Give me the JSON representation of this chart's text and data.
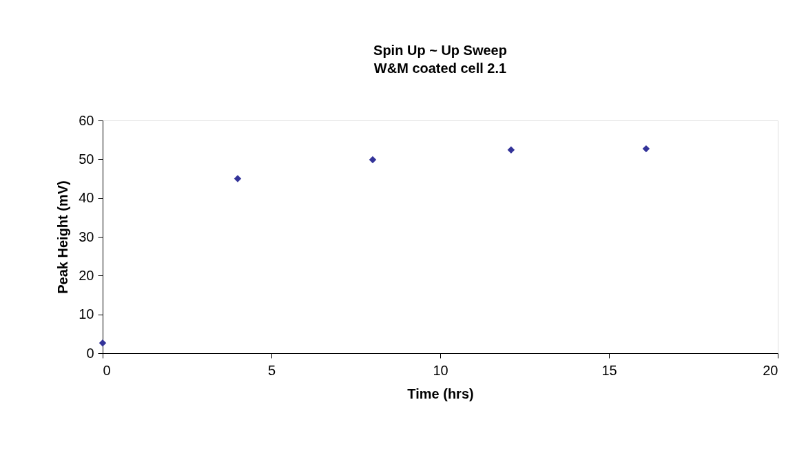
{
  "chart_data": {
    "type": "scatter",
    "title": [
      "Spin Up ~ Up Sweep",
      "W&M coated cell 2.1"
    ],
    "xlabel": "Time (hrs)",
    "ylabel": "Peak Height (mV)",
    "x": [
      0,
      4.0,
      8.0,
      12.1,
      16.1
    ],
    "series": [
      {
        "color": "#333399",
        "values": [
          2.6,
          45.0,
          49.9,
          52.4,
          52.7
        ]
      }
    ],
    "xlim": [
      0,
      20
    ],
    "xticks": [
      0,
      5,
      10,
      15,
      20
    ],
    "ylim": [
      0,
      60
    ],
    "yticks": [
      0,
      10,
      20,
      30,
      40,
      50,
      60
    ],
    "grid": false,
    "legend": false,
    "marker": "diamond"
  }
}
